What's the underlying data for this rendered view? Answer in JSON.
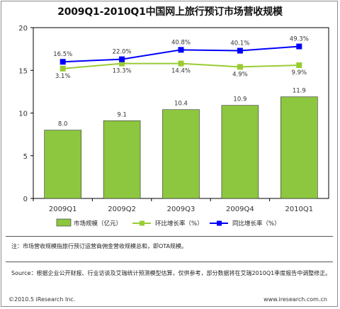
{
  "chart_data": {
    "type": "bar",
    "title": "2009Q1-2010Q1中国网上旅行预订市场营收规模",
    "categories": [
      "2009Q1",
      "2009Q2",
      "2009Q3",
      "2009Q4",
      "2010Q1"
    ],
    "ylim": [
      0,
      20
    ],
    "yticks": [
      "0",
      "5",
      "10",
      "15",
      "20"
    ],
    "grid": false,
    "legend_position": "bottom",
    "series": [
      {
        "name": "市场规模（亿元）",
        "kind": "bar",
        "color": "#8dc63f",
        "values": [
          8.0,
          9.1,
          10.4,
          10.9,
          11.9
        ],
        "labels": [
          "8.0",
          "9.1",
          "10.4",
          "10.9",
          "11.9"
        ]
      },
      {
        "name": "环比增长率（%）",
        "kind": "line",
        "color": "#99cc33",
        "values": [
          15.2,
          15.8,
          15.8,
          15.4,
          15.6
        ],
        "labels": [
          "3.1%",
          "13.3%",
          "14.4%",
          "4.9%",
          "9.9%"
        ]
      },
      {
        "name": "同比增长率（%）",
        "kind": "line",
        "color": "#0000ff",
        "values": [
          16.0,
          16.3,
          17.4,
          17.3,
          17.8
        ],
        "labels": [
          "16.5%",
          "22.0%",
          "40.8%",
          "40.1%",
          "49.3%"
        ]
      }
    ]
  },
  "footer": {
    "note": "注：市场营收规模指旅行预订运营商佣金营收规模总和，即OTA规模。",
    "source": "Source：根据企业公开财报、行业访谈及艾瑞统计预测模型估算，仅供参考，部分数据将在艾瑞2010Q1季度报告中调整修正。",
    "copyright": "©2010.5 iResearch Inc.",
    "website": "www.iresearch.com.cn"
  }
}
